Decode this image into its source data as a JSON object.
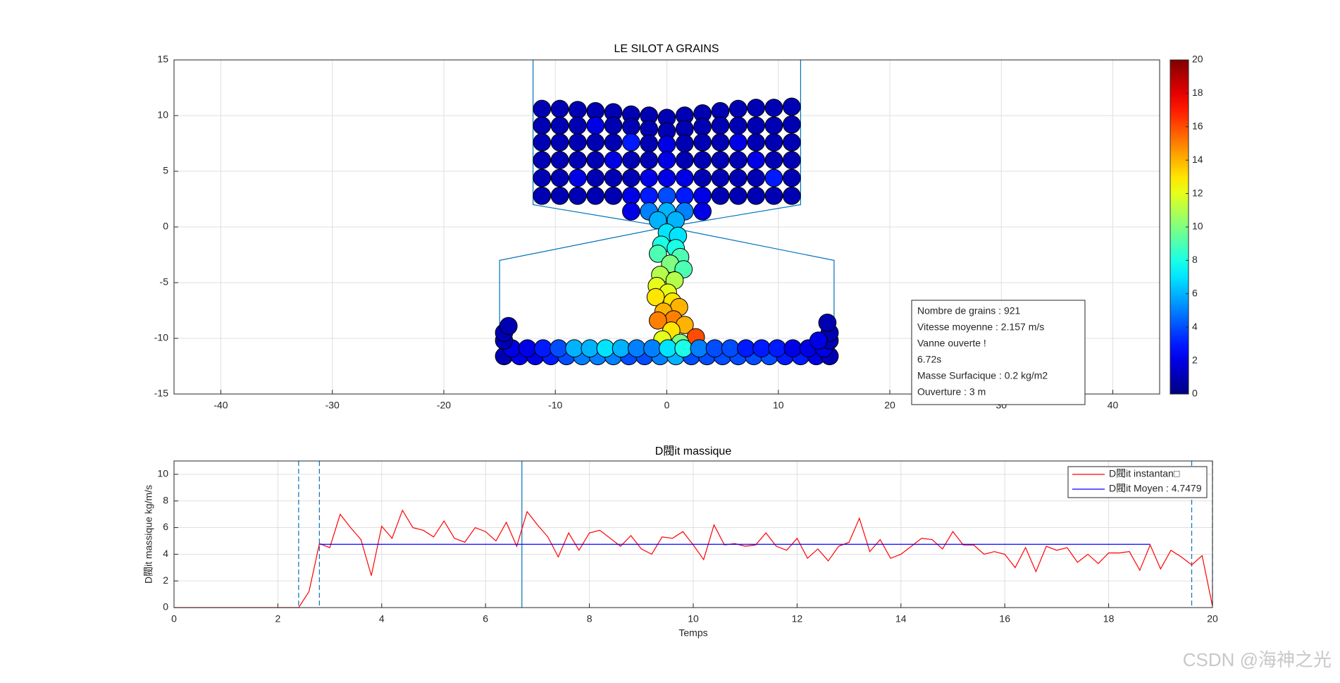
{
  "chart_data": [
    {
      "type": "scatter",
      "title": "LE SILOT A GRAINS",
      "xlim": [
        -44.2,
        44.2
      ],
      "ylim": [
        -15,
        15
      ],
      "xticks": [
        -40,
        -30,
        -20,
        -10,
        0,
        10,
        20,
        30,
        40
      ],
      "yticks": [
        -15,
        -10,
        -5,
        0,
        5,
        10,
        15
      ],
      "grid": true,
      "colormap": "jet",
      "clim": [
        0,
        20
      ],
      "cticks": [
        0,
        2,
        4,
        6,
        8,
        10,
        12,
        14,
        16,
        18,
        20
      ],
      "wall_color": "#0072bd",
      "walls": [
        [
          [
            -12,
            15
          ],
          [
            -12,
            2
          ],
          [
            0,
            0
          ],
          [
            12,
            2
          ],
          [
            12,
            15
          ]
        ],
        [
          [
            -15,
            -12
          ],
          [
            -15,
            -3
          ],
          [
            0,
            0
          ],
          [
            15,
            -3
          ],
          [
            15,
            -12
          ],
          [
            -15,
            -12
          ]
        ]
      ],
      "grains": [
        [
          -11.2,
          10.6,
          1
        ],
        [
          -9.6,
          10.6,
          1
        ],
        [
          -8.0,
          10.5,
          1
        ],
        [
          -6.4,
          10.4,
          1
        ],
        [
          -4.8,
          10.3,
          1
        ],
        [
          -3.2,
          10.1,
          1
        ],
        [
          -1.6,
          10.0,
          1
        ],
        [
          0,
          9.8,
          1
        ],
        [
          1.6,
          10.0,
          1
        ],
        [
          3.2,
          10.2,
          1
        ],
        [
          4.8,
          10.4,
          1
        ],
        [
          6.4,
          10.6,
          1
        ],
        [
          8.0,
          10.7,
          1
        ],
        [
          9.6,
          10.7,
          1
        ],
        [
          11.2,
          10.8,
          1
        ],
        [
          -11.2,
          9.1,
          1
        ],
        [
          -9.6,
          9.1,
          1
        ],
        [
          -8.0,
          9.1,
          1
        ],
        [
          -6.4,
          9.1,
          2
        ],
        [
          -4.8,
          9.1,
          1
        ],
        [
          -3.2,
          9.0,
          1
        ],
        [
          -1.6,
          8.8,
          1
        ],
        [
          0,
          8.6,
          1
        ],
        [
          1.6,
          8.8,
          1
        ],
        [
          3.2,
          9.0,
          1
        ],
        [
          4.8,
          9.1,
          1
        ],
        [
          6.4,
          9.1,
          1
        ],
        [
          8.0,
          9.1,
          1
        ],
        [
          9.6,
          9.1,
          1
        ],
        [
          11.2,
          9.2,
          1
        ],
        [
          -11.2,
          7.6,
          1
        ],
        [
          -9.6,
          7.6,
          1
        ],
        [
          -8.0,
          7.6,
          1
        ],
        [
          -6.4,
          7.6,
          1
        ],
        [
          -4.8,
          7.6,
          1
        ],
        [
          -3.2,
          7.6,
          3
        ],
        [
          -1.6,
          7.5,
          1
        ],
        [
          0,
          7.4,
          2
        ],
        [
          1.6,
          7.5,
          1
        ],
        [
          3.2,
          7.6,
          1
        ],
        [
          4.8,
          7.6,
          1
        ],
        [
          6.4,
          7.6,
          2
        ],
        [
          8.0,
          7.6,
          1
        ],
        [
          9.6,
          7.6,
          1
        ],
        [
          11.2,
          7.6,
          1
        ],
        [
          -11.2,
          6.0,
          1
        ],
        [
          -9.6,
          6.0,
          1
        ],
        [
          -8.0,
          6.0,
          1
        ],
        [
          -6.4,
          6.0,
          1
        ],
        [
          -4.8,
          6.0,
          2
        ],
        [
          -3.2,
          6.0,
          1
        ],
        [
          -1.6,
          6.0,
          1
        ],
        [
          0,
          6.0,
          2
        ],
        [
          1.6,
          6.0,
          1
        ],
        [
          3.2,
          6.0,
          1
        ],
        [
          4.8,
          6.0,
          1
        ],
        [
          6.4,
          6.0,
          1
        ],
        [
          8.0,
          6.0,
          2
        ],
        [
          9.6,
          6.0,
          1
        ],
        [
          11.2,
          6.0,
          1
        ],
        [
          -11.2,
          4.4,
          1
        ],
        [
          -9.6,
          4.4,
          1
        ],
        [
          -8.0,
          4.4,
          2
        ],
        [
          -6.4,
          4.4,
          1
        ],
        [
          -4.8,
          4.4,
          1
        ],
        [
          -3.2,
          4.4,
          1
        ],
        [
          -1.6,
          4.4,
          2
        ],
        [
          0,
          4.4,
          2
        ],
        [
          1.6,
          4.4,
          2
        ],
        [
          3.2,
          4.4,
          1
        ],
        [
          4.8,
          4.4,
          1
        ],
        [
          6.4,
          4.4,
          1
        ],
        [
          8.0,
          4.4,
          1
        ],
        [
          9.6,
          4.4,
          3
        ],
        [
          11.2,
          4.4,
          1
        ],
        [
          -11.2,
          2.8,
          1
        ],
        [
          -9.6,
          2.8,
          1
        ],
        [
          -8.0,
          2.8,
          1
        ],
        [
          -6.4,
          2.8,
          1
        ],
        [
          -4.8,
          2.8,
          1
        ],
        [
          -3.2,
          2.8,
          2
        ],
        [
          -1.6,
          2.8,
          3
        ],
        [
          0,
          2.8,
          4
        ],
        [
          1.6,
          2.8,
          3
        ],
        [
          3.2,
          2.8,
          2
        ],
        [
          4.8,
          2.8,
          1
        ],
        [
          6.4,
          2.8,
          1
        ],
        [
          8.0,
          2.8,
          1
        ],
        [
          9.6,
          2.8,
          1
        ],
        [
          11.2,
          2.8,
          1
        ],
        [
          -3.2,
          1.4,
          2
        ],
        [
          -1.6,
          1.4,
          5
        ],
        [
          0,
          1.4,
          6
        ],
        [
          1.6,
          1.4,
          5
        ],
        [
          3.2,
          1.4,
          2
        ],
        [
          -0.8,
          0.6,
          6
        ],
        [
          0.8,
          0.6,
          6
        ],
        [
          0,
          -0.5,
          7
        ],
        [
          1.0,
          -0.8,
          7
        ],
        [
          -0.5,
          -1.6,
          8
        ],
        [
          0.8,
          -1.9,
          8
        ],
        [
          -0.8,
          -2.4,
          9
        ],
        [
          1.2,
          -2.7,
          9
        ],
        [
          0.3,
          -3.3,
          10
        ],
        [
          1.5,
          -3.8,
          9
        ],
        [
          -0.6,
          -4.3,
          11
        ],
        [
          0.7,
          -4.8,
          11
        ],
        [
          -0.9,
          -5.3,
          12
        ],
        [
          0.1,
          -5.9,
          12
        ],
        [
          -1.0,
          -6.3,
          13
        ],
        [
          0.5,
          -6.7,
          13
        ],
        [
          1.1,
          -7.2,
          14
        ],
        [
          -0.3,
          -7.6,
          14
        ],
        [
          0.6,
          -8.3,
          15
        ],
        [
          -0.8,
          -8.4,
          15
        ],
        [
          1.6,
          -8.8,
          14
        ],
        [
          0.4,
          -9.3,
          13
        ],
        [
          2.6,
          -9.9,
          16
        ],
        [
          -0.4,
          -10.1,
          12
        ],
        [
          1.2,
          -10.4,
          10
        ],
        [
          -14.6,
          -11.6,
          1
        ],
        [
          -13.2,
          -11.6,
          2
        ],
        [
          -11.8,
          -11.6,
          2
        ],
        [
          -10.4,
          -11.6,
          3
        ],
        [
          -9.0,
          -11.6,
          4
        ],
        [
          -7.6,
          -11.6,
          5
        ],
        [
          -6.2,
          -11.6,
          5
        ],
        [
          -4.8,
          -11.6,
          5
        ],
        [
          -3.4,
          -11.6,
          4
        ],
        [
          -2.0,
          -11.6,
          4
        ],
        [
          -0.6,
          -11.6,
          5
        ],
        [
          0.8,
          -11.6,
          6
        ],
        [
          2.2,
          -11.6,
          4
        ],
        [
          3.6,
          -11.6,
          4
        ],
        [
          5.0,
          -11.6,
          4
        ],
        [
          6.4,
          -11.6,
          4
        ],
        [
          7.8,
          -11.6,
          4
        ],
        [
          9.2,
          -11.6,
          4
        ],
        [
          10.6,
          -11.6,
          3
        ],
        [
          12.0,
          -11.6,
          3
        ],
        [
          13.4,
          -11.6,
          2
        ],
        [
          14.6,
          -11.6,
          1
        ],
        [
          -13.9,
          -10.9,
          2
        ],
        [
          -12.5,
          -10.9,
          2
        ],
        [
          -11.1,
          -10.9,
          3
        ],
        [
          -9.7,
          -10.9,
          4
        ],
        [
          -8.3,
          -10.9,
          6
        ],
        [
          -6.9,
          -10.9,
          6
        ],
        [
          -5.5,
          -10.9,
          7
        ],
        [
          -4.1,
          -10.9,
          6
        ],
        [
          -2.7,
          -10.9,
          5
        ],
        [
          -1.3,
          -10.9,
          5
        ],
        [
          0.1,
          -10.9,
          7
        ],
        [
          1.5,
          -10.9,
          8
        ],
        [
          2.9,
          -10.9,
          5
        ],
        [
          4.3,
          -10.9,
          4
        ],
        [
          5.7,
          -10.9,
          4
        ],
        [
          7.1,
          -10.9,
          3
        ],
        [
          8.5,
          -10.9,
          3
        ],
        [
          9.9,
          -10.9,
          3
        ],
        [
          11.3,
          -10.9,
          2
        ],
        [
          12.7,
          -10.9,
          2
        ],
        [
          14.1,
          -10.9,
          2
        ],
        [
          -14.6,
          -10.2,
          1
        ],
        [
          -14.6,
          -9.5,
          1
        ],
        [
          -14.2,
          -8.9,
          1
        ],
        [
          14.6,
          -10.2,
          1
        ],
        [
          14.6,
          -9.5,
          1
        ],
        [
          14.4,
          -8.6,
          1
        ],
        [
          13.6,
          -10.2,
          2
        ]
      ],
      "info": [
        "Nombre de grains : 921",
        "Vitesse moyenne : 2.157 m/s",
        "Vanne ouverte !",
        "6.72s",
        "Masse Surfacique : 0.2 kg/m2",
        "Ouverture : 3 m"
      ]
    },
    {
      "type": "line",
      "title": "D閥it massique",
      "xlabel": "Temps",
      "ylabel": "D閥it massique kg/m/s",
      "xlim": [
        0,
        20
      ],
      "ylim": [
        0,
        11
      ],
      "xticks": [
        0,
        2,
        4,
        6,
        8,
        10,
        12,
        14,
        16,
        18,
        20
      ],
      "yticks": [
        0,
        2,
        4,
        6,
        8,
        10
      ],
      "grid": true,
      "legend": "upper right",
      "vlines": [
        {
          "x": 2.4,
          "style": "dashed"
        },
        {
          "x": 2.8,
          "style": "dashed"
        },
        {
          "x": 6.7,
          "style": "solid"
        },
        {
          "x": 19.6,
          "style": "dashed"
        },
        {
          "x": 20,
          "style": "dashed"
        }
      ],
      "vline_color": "#0072bd",
      "series": [
        {
          "name": "D閥it instantan□",
          "color": "#ff0000",
          "x": [
            0,
            2.4,
            2.6,
            2.8,
            3.0,
            3.2,
            3.4,
            3.6,
            3.8,
            4.0,
            4.2,
            4.4,
            4.6,
            4.8,
            5.0,
            5.2,
            5.4,
            5.6,
            5.8,
            6.0,
            6.2,
            6.4,
            6.6,
            6.8,
            7.0,
            7.2,
            7.4,
            7.6,
            7.8,
            8.0,
            8.2,
            8.4,
            8.6,
            8.8,
            9.0,
            9.2,
            9.4,
            9.6,
            9.8,
            10.0,
            10.2,
            10.4,
            10.6,
            10.8,
            11.0,
            11.2,
            11.4,
            11.6,
            11.8,
            12.0,
            12.2,
            12.4,
            12.6,
            12.8,
            13.0,
            13.2,
            13.4,
            13.6,
            13.8,
            14.0,
            14.2,
            14.4,
            14.6,
            14.8,
            15.0,
            15.2,
            15.4,
            15.6,
            15.8,
            16.0,
            16.2,
            16.4,
            16.6,
            16.8,
            17.0,
            17.2,
            17.4,
            17.6,
            17.8,
            18.0,
            18.2,
            18.4,
            18.6,
            18.8,
            19.0,
            19.2,
            19.4,
            19.6,
            19.8,
            20.0
          ],
          "values": [
            0,
            0,
            1.2,
            4.8,
            4.5,
            7.0,
            6.0,
            5.1,
            2.4,
            6.1,
            5.2,
            7.3,
            6.0,
            5.8,
            5.3,
            6.5,
            5.2,
            4.9,
            6.0,
            5.7,
            5.0,
            6.4,
            4.6,
            7.2,
            6.2,
            5.3,
            3.8,
            5.6,
            4.3,
            5.6,
            5.8,
            5.2,
            4.6,
            5.4,
            4.4,
            4.0,
            5.3,
            5.2,
            5.7,
            4.7,
            3.6,
            6.2,
            4.7,
            4.8,
            4.6,
            4.7,
            5.6,
            4.6,
            4.3,
            5.2,
            3.7,
            4.4,
            3.5,
            4.6,
            4.9,
            6.7,
            4.2,
            5.1,
            3.7,
            4.0,
            4.6,
            5.2,
            5.1,
            4.4,
            5.7,
            4.7,
            4.7,
            4.0,
            4.2,
            4.0,
            3.0,
            4.5,
            2.7,
            4.6,
            4.3,
            4.5,
            3.4,
            4.0,
            3.3,
            4.1,
            4.1,
            4.2,
            2.8,
            4.7,
            2.9,
            4.3,
            3.8,
            3.2,
            3.9,
            0.1
          ]
        },
        {
          "name": "D閥it Moyen : 4.7479",
          "color": "#0000ff",
          "x": [
            2.8,
            18.8
          ],
          "values": [
            4.7479,
            4.7479
          ]
        }
      ]
    }
  ],
  "watermark": "CSDN @海神之光"
}
